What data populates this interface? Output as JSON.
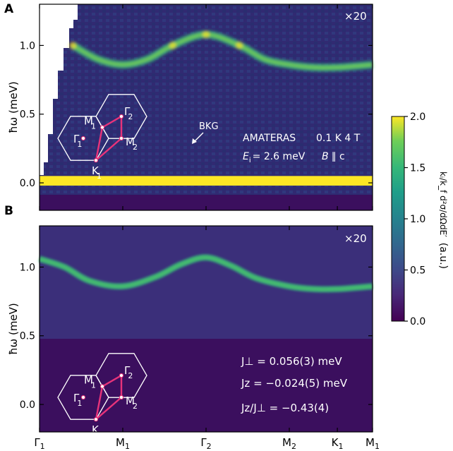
{
  "chart_data": [
    {
      "type": "heatmap",
      "panel_label": "A",
      "magnification": "×20",
      "ylabel": "ħω (meV)",
      "ylim": [
        -0.2,
        1.3
      ],
      "yticks": [
        "0.0",
        "0.5",
        "1.0"
      ],
      "ytick_values": [
        0.0,
        0.5,
        1.0
      ],
      "x_points": [
        "Γ1",
        "M1",
        "Γ2",
        "M2",
        "K1",
        "M1"
      ],
      "x_point_positions": [
        0,
        1,
        2,
        3,
        3.577,
        4
      ],
      "x_range": [
        0,
        4
      ],
      "dispersion": {
        "x": [
          0.4,
          0.7,
          1.0,
          1.3,
          1.6,
          2.0,
          2.4,
          2.7,
          3.0,
          3.3,
          3.577,
          3.8,
          4.0
        ],
        "y": [
          1.0,
          0.9,
          0.86,
          0.9,
          1.0,
          1.08,
          1.0,
          0.9,
          0.86,
          0.84,
          0.84,
          0.85,
          0.86
        ]
      },
      "elastic_band": [
        -0.02,
        0.05
      ],
      "annotations": {
        "arrow_label": "BKG",
        "instrument": "AMATERAS",
        "conditions": "0.1 K 4 T",
        "ei_symbol": "E",
        "ei_sub": "i",
        "ei_value": "= 2.6 meV",
        "field_symbol": "B",
        "field_rest": "∥ c"
      }
    },
    {
      "type": "heatmap",
      "panel_label": "B",
      "magnification": "×20",
      "ylabel": "ħω (meV)",
      "ylim": [
        -0.2,
        1.3
      ],
      "yticks": [
        "0.0",
        "0.5",
        "1.0"
      ],
      "ytick_values": [
        0.0,
        0.5,
        1.0
      ],
      "x_points": [
        "Γ1",
        "M1",
        "Γ2",
        "M2",
        "K1",
        "M1"
      ],
      "x_point_positions": [
        0,
        1,
        2,
        3,
        3.577,
        4
      ],
      "x_range": [
        0,
        4
      ],
      "dispersion": {
        "x": [
          0.0,
          0.3,
          0.6,
          1.0,
          1.4,
          1.7,
          2.0,
          2.3,
          2.6,
          3.0,
          3.3,
          3.577,
          3.8,
          4.0
        ],
        "y": [
          1.06,
          1.0,
          0.9,
          0.86,
          0.93,
          1.02,
          1.07,
          1.01,
          0.92,
          0.86,
          0.84,
          0.84,
          0.85,
          0.86
        ]
      },
      "annotations": {
        "jperp_line": "J⊥ = 0.056(3) meV",
        "jz_line": "Jz = −0.024(5) meV",
        "ratio_line": "Jz/J⊥ = −0.43(4)"
      }
    }
  ],
  "colorbar": {
    "ticks": [
      "0.0",
      "0.5",
      "1.0",
      "1.5",
      "2.0"
    ],
    "tick_values": [
      0.0,
      0.5,
      1.0,
      1.5,
      2.0
    ],
    "range": [
      0.0,
      2.0
    ],
    "label_prefix": "kᵢ/k_f d²σ/dΩdE′",
    "label_suffix": "(a.u.)"
  },
  "bz_inset": {
    "labels": [
      "Γ",
      "1",
      "M",
      "1",
      "Γ",
      "2",
      "M",
      "2",
      "K",
      "1"
    ]
  },
  "colors": {
    "background_dark": "#3b0f5e",
    "band": "#35b779",
    "band_peak": "#fde725",
    "inset_path": "#e8337a",
    "inset_hex": "#ffffff"
  }
}
